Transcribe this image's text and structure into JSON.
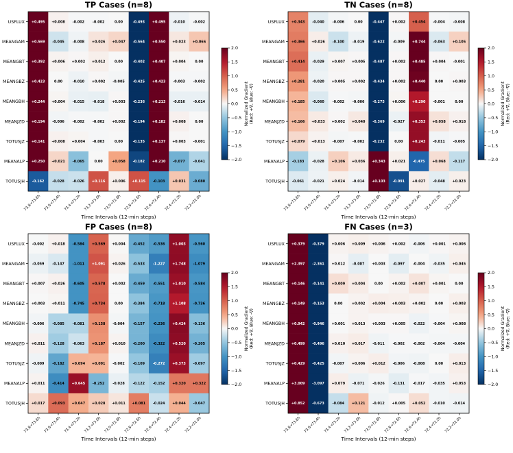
{
  "chart_data": [
    {
      "type": "heatmap",
      "title": "TP Cases (n=8)",
      "xlabel": "Time Intervals (12-min steps)",
      "ylabel": "",
      "colorbar_label": "Normalized Gradient\n(Red: +∇, Blue: -∇)",
      "colorbar_ticks": [
        "2.0",
        "1.5",
        "1.0",
        "0.5",
        "0.0",
        "−0.5",
        "−1.0",
        "−1.5",
        "−2.0"
      ],
      "vmin": -2.0,
      "vmax": 2.0,
      "categories": [
        "73.8→73.6h",
        "73.6→73.4h",
        "73.4→73.2h",
        "73.2→73.0h",
        "73.0→72.8h",
        "72.8→72.6h",
        "72.6→72.4h",
        "72.4→72.2h",
        "72.2→72.0h"
      ],
      "rows": [
        "USFLUX",
        "MEANGAM",
        "MEANGBT",
        "MEANGBZ",
        "MEANGBH",
        "MEANJZD",
        "TOTUSJZ",
        "MEANALP",
        "TOTUSJH"
      ],
      "labels": [
        [
          "+0.495",
          "+0.008",
          "-0.002",
          "-0.002",
          "0.00",
          "-0.493",
          "+0.495",
          "-0.010",
          "-0.002"
        ],
        [
          "+0.569",
          "-0.045",
          "-0.008",
          "+0.026",
          "+0.047",
          "-0.564",
          "+0.550",
          "+0.023",
          "+0.066"
        ],
        [
          "+0.392",
          "+0.006",
          "+0.002",
          "+0.012",
          "0.00",
          "-0.402",
          "+0.407",
          "+0.004",
          "0.00"
        ],
        [
          "+0.423",
          "0.00",
          "-0.010",
          "+0.002",
          "-0.005",
          "-0.425",
          "+0.423",
          "-0.003",
          "-0.002"
        ],
        [
          "+0.244",
          "+0.004",
          "-0.015",
          "-0.018",
          "+0.003",
          "-0.236",
          "+0.213",
          "-0.016",
          "-0.014"
        ],
        [
          "+0.194",
          "-0.006",
          "-0.002",
          "-0.002",
          "+0.002",
          "-0.194",
          "+0.182",
          "+0.008",
          "0.00"
        ],
        [
          "+0.141",
          "+0.008",
          "+0.004",
          "-0.003",
          "0.00",
          "-0.135",
          "+0.137",
          "+0.003",
          "-0.001"
        ],
        [
          "+0.250",
          "+0.021",
          "-0.065",
          "0.00",
          "+0.058",
          "-0.182",
          "+0.210",
          "-0.077",
          "-0.041"
        ],
        [
          "-0.162",
          "-0.028",
          "-0.026",
          "+0.116",
          "+0.006",
          "+0.115",
          "-0.103",
          "+0.031",
          "-0.080"
        ]
      ],
      "colors": [
        [
          2.4,
          0.04,
          -0.01,
          -0.01,
          0,
          -2.4,
          2.4,
          -0.05,
          -0.01
        ],
        [
          2.4,
          -0.2,
          -0.04,
          0.12,
          0.2,
          -2.4,
          2.4,
          0.1,
          0.3
        ],
        [
          2.4,
          0.03,
          0.01,
          0.05,
          0,
          -2.4,
          2.4,
          0.02,
          0
        ],
        [
          2.4,
          0,
          -0.05,
          0.01,
          -0.02,
          -2.4,
          2.4,
          -0.01,
          -0.01
        ],
        [
          2.4,
          0.02,
          -0.07,
          -0.08,
          0.01,
          -2.4,
          2.4,
          -0.07,
          -0.07
        ],
        [
          2.4,
          -0.03,
          -0.01,
          -0.01,
          0.01,
          -2.4,
          2.4,
          0.04,
          0
        ],
        [
          2.4,
          0.04,
          0.02,
          -0.01,
          0,
          -2.4,
          2.4,
          0.01,
          0
        ],
        [
          2.4,
          0.2,
          -0.55,
          0,
          0.5,
          -1.8,
          2.0,
          -0.7,
          -0.35
        ],
        [
          -1.6,
          -0.25,
          -0.22,
          1.1,
          0.05,
          1.1,
          -1.0,
          0.3,
          -0.75
        ]
      ]
    },
    {
      "type": "heatmap",
      "title": "TN Cases (n=8)",
      "xlabel": "Time Intervals (12-min steps)",
      "ylabel": "",
      "colorbar_label": "Normalized Gradient\n(Red: +∇, Blue: -∇)",
      "colorbar_ticks": [
        "2.0",
        "1.5",
        "1.0",
        "0.5",
        "0.0",
        "−0.5",
        "−1.0",
        "−1.5",
        "−2.0"
      ],
      "vmin": -2.0,
      "vmax": 2.0,
      "categories": [
        "73.8→73.6h",
        "73.6→73.4h",
        "73.4→73.2h",
        "73.2→73.0h",
        "73.0→72.8h",
        "72.8→72.6h",
        "72.6→72.4h",
        "72.4→72.2h",
        "72.2→72.0h"
      ],
      "rows": [
        "USFLUX",
        "MEANGAM",
        "MEANGBT",
        "MEANGBZ",
        "MEANGBH",
        "MEANJZD",
        "TOTUSJZ",
        "MEANALP",
        "TOTUSJH"
      ],
      "labels": [
        [
          "+0.343",
          "-0.040",
          "-0.006",
          "0.00",
          "-0.447",
          "+0.002",
          "+0.454",
          "-0.004",
          "-0.008"
        ],
        [
          "+0.366",
          "+0.026",
          "-0.100",
          "-0.019",
          "-0.622",
          "-0.009",
          "+0.744",
          "-0.063",
          "+0.105"
        ],
        [
          "+0.414",
          "-0.029",
          "+0.007",
          "+0.005",
          "-0.487",
          "+0.002",
          "+0.485",
          "+0.004",
          "-0.001"
        ],
        [
          "+0.281",
          "-0.020",
          "+0.005",
          "+0.002",
          "-0.434",
          "+0.002",
          "+0.440",
          "0.00",
          "+0.003"
        ],
        [
          "+0.185",
          "-0.060",
          "-0.002",
          "-0.006",
          "-0.275",
          "+0.006",
          "+0.290",
          "-0.001",
          "0.00"
        ],
        [
          "+0.166",
          "+0.033",
          "+0.002",
          "+0.040",
          "-0.369",
          "-0.027",
          "+0.353",
          "+0.058",
          "+0.018"
        ],
        [
          "+0.079",
          "+0.013",
          "-0.007",
          "-0.002",
          "-0.232",
          "0.00",
          "+0.243",
          "-0.011",
          "-0.005"
        ],
        [
          "-0.183",
          "-0.028",
          "+0.106",
          "+0.036",
          "+0.343",
          "+0.021",
          "-0.475",
          "+0.068",
          "-0.117"
        ],
        [
          "-0.061",
          "-0.021",
          "+0.024",
          "-0.014",
          "+0.103",
          "-0.091",
          "+0.027",
          "-0.048",
          "+0.023"
        ]
      ],
      "colors": [
        [
          0.75,
          -0.1,
          -0.02,
          0,
          -2.4,
          0.01,
          1.0,
          -0.01,
          -0.02
        ],
        [
          0.8,
          0.06,
          -0.22,
          -0.05,
          -2.4,
          -0.02,
          2.4,
          -0.14,
          0.23
        ],
        [
          0.9,
          -0.07,
          0.02,
          0.01,
          -2.4,
          0.01,
          2.0,
          0.01,
          0
        ],
        [
          0.6,
          -0.05,
          0.01,
          0.01,
          -2.4,
          0.01,
          1.95,
          0,
          0.01
        ],
        [
          0.4,
          -0.14,
          -0.01,
          -0.02,
          -2.4,
          0.02,
          1.5,
          0,
          0
        ],
        [
          0.36,
          0.08,
          0.01,
          0.09,
          -2.4,
          -0.06,
          1.7,
          0.13,
          0.04
        ],
        [
          0.18,
          0.03,
          -0.02,
          -0.01,
          -2.4,
          0,
          1.7,
          -0.03,
          -0.01
        ],
        [
          -0.4,
          -0.06,
          0.24,
          0.08,
          2.4,
          0.05,
          -1.5,
          0.15,
          -0.26
        ],
        [
          -0.13,
          -0.05,
          0.05,
          -0.03,
          2.4,
          -1.7,
          0.06,
          -0.1,
          0.05
        ]
      ]
    },
    {
      "type": "heatmap",
      "title": "FP Cases (n=8)",
      "xlabel": "Time Intervals (12-min steps)",
      "ylabel": "",
      "colorbar_label": "Normalized Gradient\n(Red: +∇, Blue: -∇)",
      "colorbar_ticks": [
        "2.0",
        "1.5",
        "1.0",
        "0.5",
        "0.0",
        "−0.5",
        "−1.0",
        "−1.5",
        "−2.0"
      ],
      "vmin": -2.0,
      "vmax": 2.0,
      "categories": [
        "73.8→73.6h",
        "73.6→73.4h",
        "73.4→73.2h",
        "73.2→73.0h",
        "73.0→72.8h",
        "72.8→72.6h",
        "72.6→72.4h",
        "72.4→72.2h",
        "72.2→72.0h"
      ],
      "rows": [
        "USFLUX",
        "MEANGAM",
        "MEANGBT",
        "MEANGBZ",
        "MEANGBH",
        "MEANJZD",
        "TOTUSJZ",
        "MEANALP",
        "TOTUSJH"
      ],
      "labels": [
        [
          "-0.002",
          "+0.018",
          "-0.584",
          "+0.569",
          "+0.004",
          "-0.452",
          "-0.536",
          "+1.003",
          "-0.560"
        ],
        [
          "-0.059",
          "-0.147",
          "-1.011",
          "+1.091",
          "+0.026",
          "-0.533",
          "-1.227",
          "+1.748",
          "-1.079"
        ],
        [
          "+0.007",
          "+0.026",
          "-0.605",
          "+0.578",
          "+0.002",
          "-0.459",
          "-0.551",
          "+1.010",
          "-0.584"
        ],
        [
          "+0.003",
          "+0.011",
          "-0.745",
          "+0.734",
          "0.00",
          "-0.384",
          "-0.718",
          "+1.108",
          "-0.736"
        ],
        [
          "-0.006",
          "-0.085",
          "-0.081",
          "+0.158",
          "-0.004",
          "-0.157",
          "-0.236",
          "+0.424",
          "-0.136"
        ],
        [
          "+0.011",
          "-0.128",
          "-0.063",
          "+0.187",
          "+0.010",
          "-0.200",
          "-0.322",
          "+0.520",
          "-0.205"
        ],
        [
          "-0.009",
          "-0.182",
          "+0.094",
          "+0.091",
          "-0.002",
          "-0.109",
          "-0.272",
          "+0.373",
          "-0.097"
        ],
        [
          "+0.011",
          "-0.414",
          "+0.645",
          "-0.252",
          "-0.028",
          "-0.122",
          "-0.152",
          "+0.320",
          "+0.322"
        ],
        [
          "+0.017",
          "+0.093",
          "+0.047",
          "+0.028",
          "+0.011",
          "+0.081",
          "-0.024",
          "+0.044",
          "-0.047"
        ]
      ],
      "colors": [
        [
          -0.004,
          0.04,
          -1.0,
          0.98,
          0.007,
          -0.78,
          -0.92,
          1.73,
          -0.97
        ],
        [
          -0.06,
          -0.15,
          -1.0,
          1.08,
          0.03,
          -0.53,
          -1.22,
          1.74,
          -1.07
        ],
        [
          0.01,
          0.04,
          -1.0,
          0.96,
          0,
          -0.76,
          -0.91,
          1.67,
          -0.97
        ],
        [
          0,
          0.02,
          -1.0,
          0.98,
          0,
          -0.52,
          -0.96,
          1.49,
          -0.99
        ],
        [
          -0.03,
          -0.35,
          -0.34,
          0.66,
          -0.02,
          -0.66,
          -0.99,
          1.78,
          -0.57
        ],
        [
          0.04,
          -0.43,
          -0.21,
          0.63,
          0.03,
          -0.67,
          -1.08,
          1.75,
          -0.69
        ],
        [
          -0.04,
          -0.81,
          0.42,
          0.41,
          -0.01,
          -0.49,
          -1.21,
          1.66,
          -0.43
        ],
        [
          0.03,
          -1.07,
          1.67,
          -0.65,
          -0.07,
          -0.32,
          -0.39,
          0.83,
          0.83
        ],
        [
          0.17,
          0.91,
          0.46,
          0.27,
          0.11,
          0.79,
          -0.23,
          0.43,
          -0.46
        ]
      ]
    },
    {
      "type": "heatmap",
      "title": "FN Cases (n=3)",
      "xlabel": "Time Intervals (12-min steps)",
      "ylabel": "",
      "colorbar_label": "Normalized Gradient\n(Red: +∇, Blue: -∇)",
      "colorbar_ticks": [
        "2.0",
        "1.5",
        "1.0",
        "0.5",
        "0.0",
        "−0.5",
        "−1.0",
        "−1.5",
        "−2.0"
      ],
      "vmin": -2.0,
      "vmax": 2.0,
      "categories": [
        "73.8→73.6h",
        "73.6→73.4h",
        "73.4→73.2h",
        "73.2→73.0h",
        "73.0→72.8h",
        "72.8→72.6h",
        "72.6→72.4h",
        "72.4→72.2h",
        "72.2→72.0h"
      ],
      "rows": [
        "USFLUX",
        "MEANGAM",
        "MEANGBT",
        "MEANGBZ",
        "MEANGBH",
        "MEANJZD",
        "TOTUSJZ",
        "MEANALP",
        "TOTUSJH"
      ],
      "labels": [
        [
          "+0.379",
          "-0.379",
          "+0.006",
          "+0.009",
          "+0.006",
          "+0.002",
          "-0.006",
          "+0.001",
          "+0.006"
        ],
        [
          "+2.397",
          "-2.361",
          "+0.012",
          "-0.087",
          "+0.003",
          "-0.097",
          "-0.004",
          "-0.035",
          "+0.045"
        ],
        [
          "+0.146",
          "-0.141",
          "+0.009",
          "+0.004",
          "0.00",
          "+0.002",
          "+0.007",
          "+0.001",
          "0.00"
        ],
        [
          "+0.149",
          "-0.153",
          "0.00",
          "+0.002",
          "+0.004",
          "+0.003",
          "+0.002",
          "0.00",
          "+0.003"
        ],
        [
          "+0.942",
          "-0.946",
          "+0.001",
          "+0.013",
          "+0.003",
          "+0.005",
          "-0.022",
          "-0.004",
          "+0.008"
        ],
        [
          "+0.499",
          "-0.496",
          "+0.010",
          "+0.017",
          "-0.011",
          "-0.002",
          "-0.002",
          "-0.004",
          "-0.004"
        ],
        [
          "+0.429",
          "-0.425",
          "-0.007",
          "+0.006",
          "+0.012",
          "-0.006",
          "-0.008",
          "0.00",
          "+0.013"
        ],
        [
          "+3.009",
          "-3.097",
          "+0.079",
          "-0.071",
          "-0.026",
          "-0.131",
          "-0.017",
          "-0.035",
          "+0.053"
        ],
        [
          "+0.852",
          "-0.673",
          "-0.084",
          "+0.121",
          "-0.012",
          "+0.005",
          "+0.052",
          "-0.010",
          "-0.014"
        ]
      ],
      "colors": [
        [
          2.4,
          -2.4,
          0.03,
          0.05,
          0.03,
          0.01,
          -0.03,
          0.01,
          0.03
        ],
        [
          2.4,
          -2.4,
          0.01,
          -0.09,
          0,
          -0.1,
          0,
          -0.04,
          0.05
        ],
        [
          2.4,
          -2.4,
          0.15,
          0.07,
          0,
          0.03,
          0.12,
          0.02,
          0
        ],
        [
          2.4,
          -2.4,
          0,
          0.03,
          0.06,
          0.05,
          0.03,
          0,
          0.05
        ],
        [
          2.4,
          -2.4,
          0,
          0.03,
          0.01,
          0.01,
          -0.05,
          -0.01,
          0.02
        ],
        [
          2.4,
          -2.4,
          0.04,
          0.07,
          -0.04,
          -0.01,
          -0.01,
          -0.02,
          -0.02
        ],
        [
          2.4,
          -2.4,
          -0.03,
          0.03,
          0.06,
          -0.03,
          -0.04,
          0,
          0.06
        ],
        [
          2.4,
          -2.4,
          0.06,
          -0.06,
          -0.02,
          -0.1,
          -0.01,
          -0.03,
          0.04
        ],
        [
          2.4,
          -2.4,
          -0.25,
          0.36,
          -0.04,
          0.01,
          0.16,
          -0.03,
          -0.04
        ]
      ]
    }
  ]
}
